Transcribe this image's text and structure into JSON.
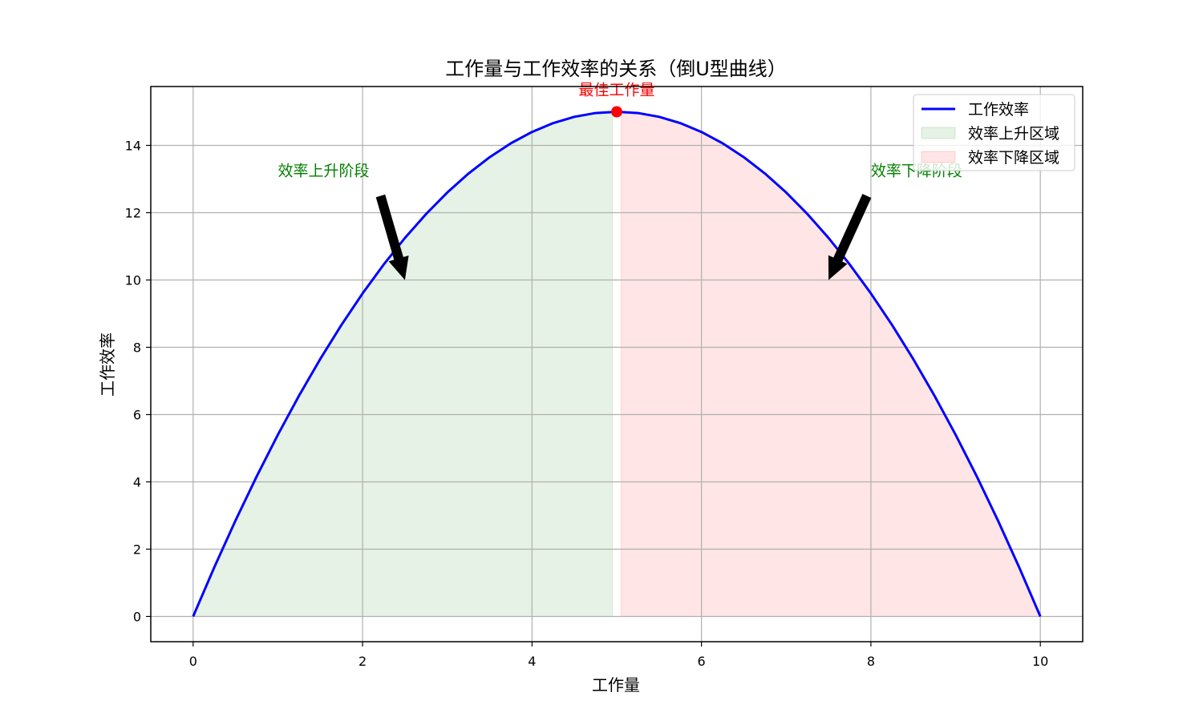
{
  "chart_data": {
    "type": "line",
    "title": "工作量与工作效率的关系（倒U型曲线）",
    "xlabel": "工作量",
    "ylabel": "工作效率",
    "xlim": [
      -0.5,
      10.5
    ],
    "ylim": [
      -0.75,
      15.75
    ],
    "xticks": [
      0,
      2,
      4,
      6,
      8,
      10
    ],
    "yticks": [
      0,
      2,
      4,
      6,
      8,
      10,
      12,
      14
    ],
    "grid": true,
    "legend_position": "top-right",
    "series": [
      {
        "name": "工作效率",
        "color": "#0000ff",
        "formula": "y = -0.6*(x-5)^2 + 15",
        "x": [
          0,
          0.25,
          0.5,
          0.75,
          1,
          1.25,
          1.5,
          1.75,
          2,
          2.25,
          2.5,
          2.75,
          3,
          3.25,
          3.5,
          3.75,
          4,
          4.25,
          4.5,
          4.75,
          5,
          5.25,
          5.5,
          5.75,
          6,
          6.25,
          6.5,
          6.75,
          7,
          7.25,
          7.5,
          7.75,
          8,
          8.25,
          8.5,
          8.75,
          9,
          9.25,
          9.5,
          9.75,
          10
        ],
        "y": [
          0,
          1.4625,
          2.85,
          4.1625,
          5.4,
          6.5625,
          7.65,
          8.6625,
          9.6,
          10.4625,
          11.25,
          11.9625,
          12.6,
          13.1625,
          13.65,
          14.0625,
          14.4,
          14.6625,
          14.85,
          14.9625,
          15,
          14.9625,
          14.85,
          14.6625,
          14.4,
          14.0625,
          13.65,
          13.1625,
          12.6,
          11.9625,
          11.25,
          10.4625,
          9.6,
          8.6625,
          7.65,
          6.5625,
          5.4,
          4.1625,
          2.85,
          1.4625,
          0
        ]
      }
    ],
    "regions": [
      {
        "name": "效率上升区域",
        "x_range": [
          0,
          4.95
        ],
        "color": "#008000",
        "alpha": 0.1
      },
      {
        "name": "效率下降区域",
        "x_range": [
          5.05,
          10
        ],
        "color": "#ff0000",
        "alpha": 0.1
      }
    ],
    "peak": {
      "x": 5,
      "y": 15,
      "label": "最佳工作量",
      "color": "#ff0000"
    },
    "annotations": [
      {
        "text": "效率上升阶段",
        "text_x": 1,
        "text_y": 13,
        "arrow_to_x": 2.5,
        "arrow_to_y": 10,
        "color": "#008000"
      },
      {
        "text": "效率下降阶段",
        "text_x": 8,
        "text_y": 13,
        "arrow_to_x": 7.5,
        "arrow_to_y": 10,
        "color": "#008000"
      }
    ]
  }
}
